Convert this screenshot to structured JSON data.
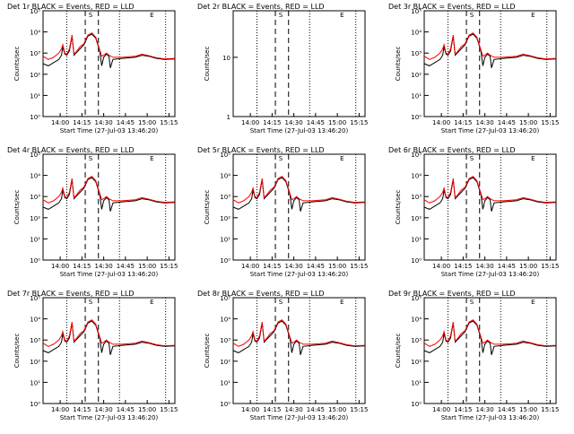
{
  "chart_data": [
    {
      "type": "line",
      "title": "Det 1r BLACK = Events, RED = LLD",
      "ylabel": "Counts/sec",
      "xlabel": "Start Time (27-Jul-03 13:46:20)",
      "y_scale": "log",
      "y_ticks": [
        "10⁰",
        "10¹",
        "10²",
        "10³",
        "10⁴",
        "10⁵"
      ],
      "x_ticks": [
        "14:00",
        "14:15",
        "14:30",
        "14:45",
        "15:00",
        "15:15"
      ],
      "markers": [
        "S",
        "E"
      ],
      "series": [
        {
          "color": "#000000",
          "variant": "events"
        },
        {
          "color": "#ff0000",
          "variant": "lld"
        }
      ]
    },
    {
      "type": "line",
      "title": "Det 2r BLACK = Events, RED = LLD",
      "ylabel": "Counts/sec",
      "xlabel": "Start Time (27-Jul-03 13:46:20)",
      "y_scale": "log",
      "y_ticks": [
        "1",
        "10"
      ],
      "x_ticks": [
        "14:00",
        "14:15",
        "14:30",
        "14:45",
        "15:00",
        "15:15"
      ],
      "markers": [
        "S",
        "E"
      ],
      "series": []
    },
    {
      "type": "line",
      "title": "Det 3r BLACK = Events, RED = LLD",
      "ylabel": "Counts/sec",
      "xlabel": "Start Time (27-Jul-03 13:46:20)",
      "y_scale": "log",
      "y_ticks": [
        "10⁰",
        "10¹",
        "10²",
        "10³",
        "10⁴",
        "10⁵"
      ],
      "x_ticks": [
        "14:00",
        "14:15",
        "14:30",
        "14:45",
        "15:00",
        "15:15"
      ],
      "markers": [
        "S",
        "E"
      ],
      "series": [
        {
          "color": "#000000",
          "variant": "events"
        },
        {
          "color": "#ff0000",
          "variant": "lld"
        }
      ]
    },
    {
      "type": "line",
      "title": "Det 4r BLACK = Events, RED = LLD",
      "ylabel": "Counts/sec",
      "xlabel": "Start Time (27-Jul-03 13:46:20)",
      "y_scale": "log",
      "y_ticks": [
        "10⁰",
        "10¹",
        "10²",
        "10³",
        "10⁴",
        "10⁵"
      ],
      "x_ticks": [
        "14:00",
        "14:15",
        "14:30",
        "14:45",
        "15:00",
        "15:15"
      ],
      "markers": [
        "S",
        "E"
      ],
      "series": [
        {
          "color": "#000000",
          "variant": "events"
        },
        {
          "color": "#ff0000",
          "variant": "lld"
        }
      ]
    },
    {
      "type": "line",
      "title": "Det 5r BLACK = Events, RED = LLD",
      "ylabel": "Counts/sec",
      "xlabel": "Start Time (27-Jul-03 13:46:20)",
      "y_scale": "log",
      "y_ticks": [
        "10⁰",
        "10¹",
        "10²",
        "10³",
        "10⁴",
        "10⁵"
      ],
      "x_ticks": [
        "14:00",
        "14:15",
        "14:30",
        "14:45",
        "15:00",
        "15:15"
      ],
      "markers": [
        "S",
        "E"
      ],
      "series": [
        {
          "color": "#000000",
          "variant": "events"
        },
        {
          "color": "#ff0000",
          "variant": "lld"
        }
      ]
    },
    {
      "type": "line",
      "title": "Det 6r BLACK = Events, RED = LLD",
      "ylabel": "Counts/sec",
      "xlabel": "Start Time (27-Jul-03 13:46:20)",
      "y_scale": "log",
      "y_ticks": [
        "10⁰",
        "10¹",
        "10²",
        "10³",
        "10⁴",
        "10⁵"
      ],
      "x_ticks": [
        "14:00",
        "14:15",
        "14:30",
        "14:45",
        "15:00",
        "15:15"
      ],
      "markers": [
        "S",
        "E"
      ],
      "series": [
        {
          "color": "#000000",
          "variant": "events"
        },
        {
          "color": "#ff0000",
          "variant": "lld"
        }
      ]
    },
    {
      "type": "line",
      "title": "Det 7r BLACK = Events, RED = LLD",
      "ylabel": "Counts/sec",
      "xlabel": "Start Time (27-Jul-03 13:46:20)",
      "y_scale": "log",
      "y_ticks": [
        "10⁰",
        "10¹",
        "10²",
        "10³",
        "10⁴",
        "10⁵"
      ],
      "x_ticks": [
        "14:00",
        "14:15",
        "14:30",
        "14:45",
        "15:00",
        "15:15"
      ],
      "markers": [
        "S",
        "E"
      ],
      "series": [
        {
          "color": "#000000",
          "variant": "events"
        },
        {
          "color": "#ff0000",
          "variant": "lld"
        }
      ]
    },
    {
      "type": "line",
      "title": "Det 8r BLACK = Events, RED = LLD",
      "ylabel": "Counts/sec",
      "xlabel": "Start Time (27-Jul-03 13:46:20)",
      "y_scale": "log",
      "y_ticks": [
        "10⁰",
        "10¹",
        "10²",
        "10³",
        "10⁴",
        "10⁵"
      ],
      "x_ticks": [
        "14:00",
        "14:15",
        "14:30",
        "14:45",
        "15:00",
        "15:15"
      ],
      "markers": [
        "S",
        "E"
      ],
      "series": [
        {
          "color": "#000000",
          "variant": "events"
        },
        {
          "color": "#ff0000",
          "variant": "lld"
        }
      ]
    },
    {
      "type": "line",
      "title": "Det 9r BLACK = Events, RED = LLD",
      "ylabel": "Counts/sec",
      "xlabel": "Start Time (27-Jul-03 13:46:20)",
      "y_scale": "log",
      "y_ticks": [
        "10⁰",
        "10¹",
        "10²",
        "10³",
        "10⁴",
        "10⁵"
      ],
      "x_ticks": [
        "14:00",
        "14:15",
        "14:30",
        "14:45",
        "15:00",
        "15:15"
      ],
      "markers": [
        "S",
        "E"
      ],
      "series": [
        {
          "color": "#000000",
          "variant": "events"
        },
        {
          "color": "#ff0000",
          "variant": "lld"
        }
      ]
    }
  ]
}
